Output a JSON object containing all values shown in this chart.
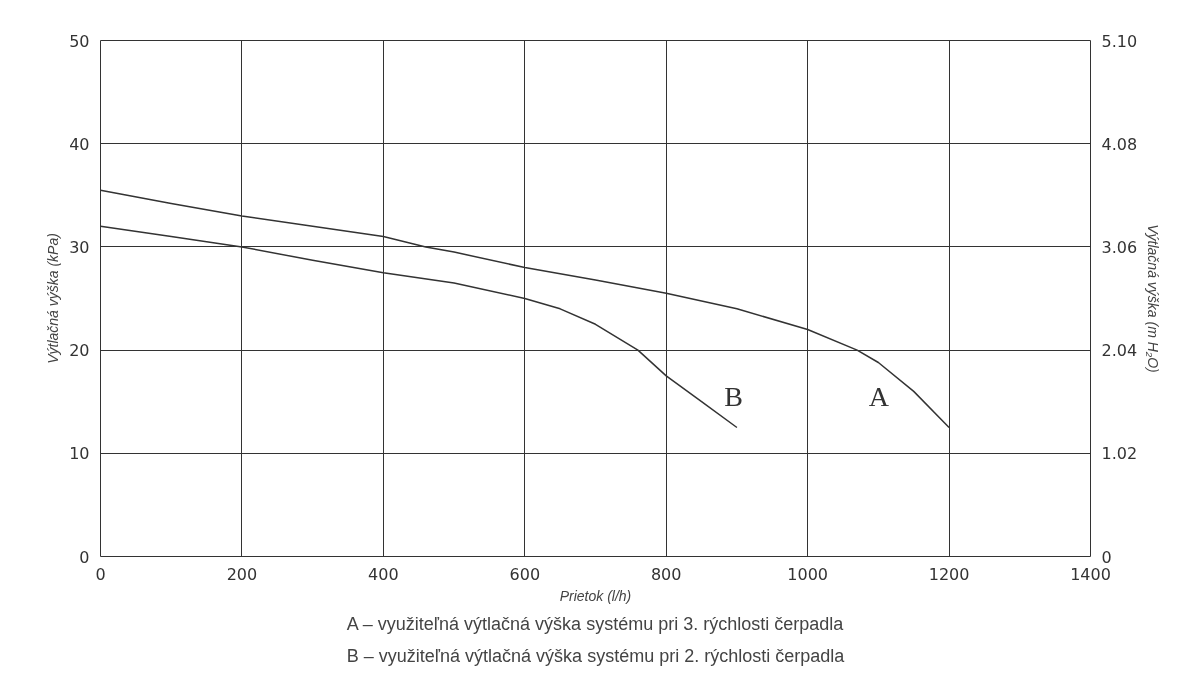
{
  "chart_data": {
    "type": "line",
    "xlabel": "Prietok (l/h)",
    "ylabel": "Výtlačná výška (kPa)",
    "y2label": "Výtlačná výška (m H₂O)",
    "x": [
      0,
      100,
      200,
      300,
      400,
      460,
      500,
      600,
      700,
      800,
      900,
      1000,
      1070,
      1100,
      1150,
      1200
    ],
    "series": [
      {
        "name": "A",
        "color": "#333333",
        "values": [
          35.5,
          34.2,
          33,
          32,
          31,
          30,
          29.5,
          28,
          26.8,
          25.5,
          24,
          22,
          20,
          18.8,
          16,
          12.5
        ]
      },
      {
        "name": "B",
        "color": "#333333",
        "x": [
          0,
          100,
          200,
          300,
          400,
          500,
          600,
          650,
          700,
          760,
          800,
          850,
          900
        ],
        "values": [
          32,
          31,
          30,
          28.7,
          27.5,
          26.5,
          25,
          24,
          22.5,
          20,
          17.5,
          15,
          12.5
        ]
      }
    ],
    "xlim": [
      0,
      1400
    ],
    "xticks": [
      0,
      200,
      400,
      600,
      800,
      1000,
      1200,
      1400
    ],
    "ylim": [
      0,
      50
    ],
    "yticks": [
      0,
      10,
      20,
      30,
      40,
      50
    ],
    "y2lim": [
      0,
      5.1
    ],
    "y2ticks": [
      0,
      1.02,
      2.04,
      3.06,
      4.08,
      {
        "value": 5.1,
        "label": "5.10"
      }
    ],
    "grid": true,
    "marker": "none",
    "line_style": "solid",
    "annotations": [
      "A – využiteľná výtlačná výška systému pri 3. rýchlosti čerpadla",
      "B – využiteľná výtlačná výška systému pri 2. rýchlosti čerpadla"
    ]
  }
}
